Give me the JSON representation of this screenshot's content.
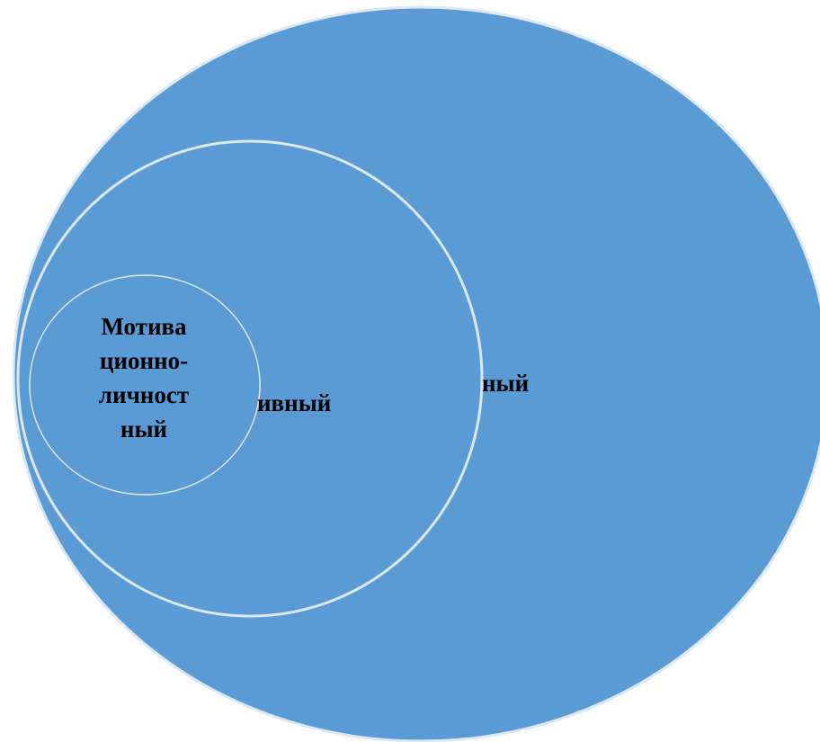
{
  "diagram": {
    "colors": {
      "fill": "#5b9bd5",
      "stroke": "#dce8f5",
      "text": "#000000"
    },
    "circles": [
      {
        "id": "outer",
        "text": "ный"
      },
      {
        "id": "middle",
        "text": "ивный"
      },
      {
        "id": "inner",
        "lines": [
          "Мотива",
          "ционно-",
          "личност",
          "ный"
        ]
      }
    ]
  }
}
